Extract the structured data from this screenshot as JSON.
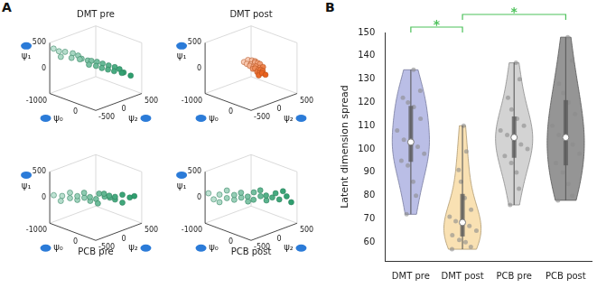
{
  "chart_data": [
    {
      "type": "scatter3d",
      "panel_label": "A",
      "title": "DMT pre",
      "color": "#2e9e6e",
      "xlabel": "ψ₀",
      "ylabel": "ψ₂",
      "zlabel": "ψ₁",
      "xlim": [
        -1000,
        500
      ],
      "xticks": [
        -1000,
        0
      ],
      "ylim": [
        -500,
        500
      ],
      "yticks": [
        -500,
        0,
        500
      ],
      "zlim": [
        -500,
        500
      ],
      "zticks": [
        0,
        500
      ],
      "x": [
        -950,
        -880,
        -800,
        -760,
        -700,
        -650,
        -600,
        -560,
        -500,
        -450,
        -420,
        -380,
        -330,
        -300,
        -250,
        -200,
        -160,
        -120,
        -80,
        -40,
        0,
        60,
        120,
        200
      ],
      "y": [
        -450,
        -380,
        -300,
        -420,
        -200,
        -260,
        -150,
        -100,
        -180,
        -40,
        20,
        -60,
        80,
        40,
        150,
        100,
        220,
        180,
        300,
        260,
        350,
        400,
        320,
        460
      ],
      "z": [
        380,
        320,
        300,
        250,
        260,
        200,
        220,
        150,
        180,
        120,
        100,
        60,
        80,
        20,
        40,
        -20,
        0,
        -60,
        -40,
        -100,
        -80,
        -150,
        -120,
        -200
      ]
    },
    {
      "type": "scatter3d",
      "title": "DMT post",
      "color": "#e8601c",
      "xlabel": "ψ₀",
      "ylabel": "ψ₂",
      "zlabel": "ψ₁",
      "xlim": [
        -1000,
        500
      ],
      "xticks": [
        -1000,
        0
      ],
      "ylim": [
        -500,
        500
      ],
      "yticks": [
        -500,
        0,
        500
      ],
      "zlim": [
        -500,
        500
      ],
      "zticks": [
        0,
        500
      ],
      "x": [
        -300,
        -260,
        -240,
        -220,
        -200,
        -180,
        -170,
        -150,
        -140,
        -120,
        -110,
        -100,
        -90,
        -80,
        -60,
        -50,
        -40,
        -20,
        0,
        20,
        40,
        60,
        80,
        100
      ],
      "y": [
        -120,
        -60,
        -100,
        0,
        -40,
        40,
        -80,
        20,
        -20,
        60,
        100,
        -60,
        0,
        80,
        -40,
        20,
        120,
        -20,
        40,
        0,
        60,
        -40,
        20,
        80
      ],
      "z": [
        150,
        180,
        120,
        160,
        100,
        140,
        90,
        130,
        60,
        110,
        80,
        40,
        70,
        20,
        50,
        0,
        30,
        -20,
        10,
        -40,
        -10,
        -60,
        -30,
        -80
      ]
    },
    {
      "type": "scatter3d",
      "title": "PCB pre",
      "color": "#2e9e6e",
      "xlabel": "ψ₀",
      "ylabel": "ψ₂",
      "zlabel": "ψ₁",
      "xlim": [
        -1000,
        500
      ],
      "xticks": [
        -1000,
        0
      ],
      "ylim": [
        -500,
        500
      ],
      "yticks": [
        -500,
        0,
        500
      ],
      "zlim": [
        -500,
        500
      ],
      "zticks": [
        0,
        500
      ],
      "x": [
        -900,
        -820,
        -760,
        -700,
        -640,
        -580,
        -520,
        -470,
        -420,
        -370,
        -320,
        -270,
        -230,
        -180,
        -140,
        -100,
        -60,
        -20,
        20,
        80,
        140,
        200,
        260,
        320
      ],
      "y": [
        -480,
        -350,
        -420,
        -260,
        -300,
        -180,
        -220,
        -100,
        -140,
        -40,
        -80,
        20,
        60,
        0,
        120,
        80,
        180,
        140,
        240,
        200,
        320,
        280,
        400,
        460
      ],
      "z": [
        60,
        20,
        -40,
        80,
        0,
        -60,
        40,
        -20,
        100,
        -80,
        20,
        -40,
        60,
        -100,
        0,
        80,
        -20,
        40,
        -60,
        20,
        -120,
        60,
        -20,
        0
      ]
    },
    {
      "type": "scatter3d",
      "title": "PCB post",
      "color": "#2e9e6e",
      "xlabel": "ψ₀",
      "ylabel": "ψ₂",
      "zlabel": "ψ₁",
      "xlim": [
        -1000,
        500
      ],
      "xticks": [
        -1000,
        0
      ],
      "ylim": [
        -500,
        500
      ],
      "yticks": [
        -500,
        0,
        500
      ],
      "zlim": [
        -500,
        500
      ],
      "zticks": [
        0,
        500
      ],
      "x": [
        -950,
        -870,
        -800,
        -740,
        -680,
        -620,
        -560,
        -500,
        -450,
        -400,
        -350,
        -300,
        -250,
        -200,
        -150,
        -100,
        -50,
        0,
        50,
        100,
        160,
        220,
        280,
        340
      ],
      "y": [
        -460,
        -400,
        -320,
        -360,
        -240,
        -280,
        -160,
        -200,
        -80,
        -120,
        0,
        -40,
        60,
        20,
        140,
        100,
        200,
        160,
        260,
        300,
        340,
        380,
        420,
        480
      ],
      "z": [
        80,
        -40,
        40,
        -80,
        120,
        0,
        -60,
        60,
        -20,
        100,
        -100,
        20,
        80,
        -40,
        0,
        140,
        -80,
        40,
        -20,
        60,
        -60,
        100,
        0,
        -120
      ]
    },
    {
      "type": "violin",
      "panel_label": "B",
      "ylabel": "Latent dimension spread",
      "categories": [
        "DMT pre",
        "DMT post",
        "PCB pre",
        "PCB post"
      ],
      "colors": [
        "#a9aee0",
        "#f7d9a0",
        "#c8c8c8",
        "#7a7a7a"
      ],
      "values": [
        [
          72,
          80,
          86,
          93,
          95,
          98,
          101,
          102,
          104,
          108,
          113,
          118,
          120,
          122,
          125,
          134
        ],
        [
          57,
          58,
          60,
          61,
          63,
          65,
          67,
          68,
          69,
          71,
          74,
          79,
          86,
          91,
          99,
          110
        ],
        [
          76,
          83,
          90,
          94,
          97,
          100,
          102,
          104,
          106,
          108,
          110,
          113,
          117,
          122,
          130,
          137
        ],
        [
          78,
          80,
          85,
          90,
          94,
          98,
          102,
          104,
          106,
          110,
          115,
          120,
          124,
          128,
          138,
          148
        ]
      ],
      "ylim": [
        52,
        150
      ],
      "yticks": [
        60,
        70,
        80,
        90,
        100,
        110,
        120,
        130,
        140,
        150
      ],
      "grid": false,
      "annotations": [
        {
          "from": "DMT pre",
          "to": "DMT post",
          "text": "*",
          "color": "#4cc15a"
        },
        {
          "from": "DMT post",
          "to": "PCB post",
          "text": "*",
          "color": "#4cc15a"
        }
      ]
    }
  ]
}
